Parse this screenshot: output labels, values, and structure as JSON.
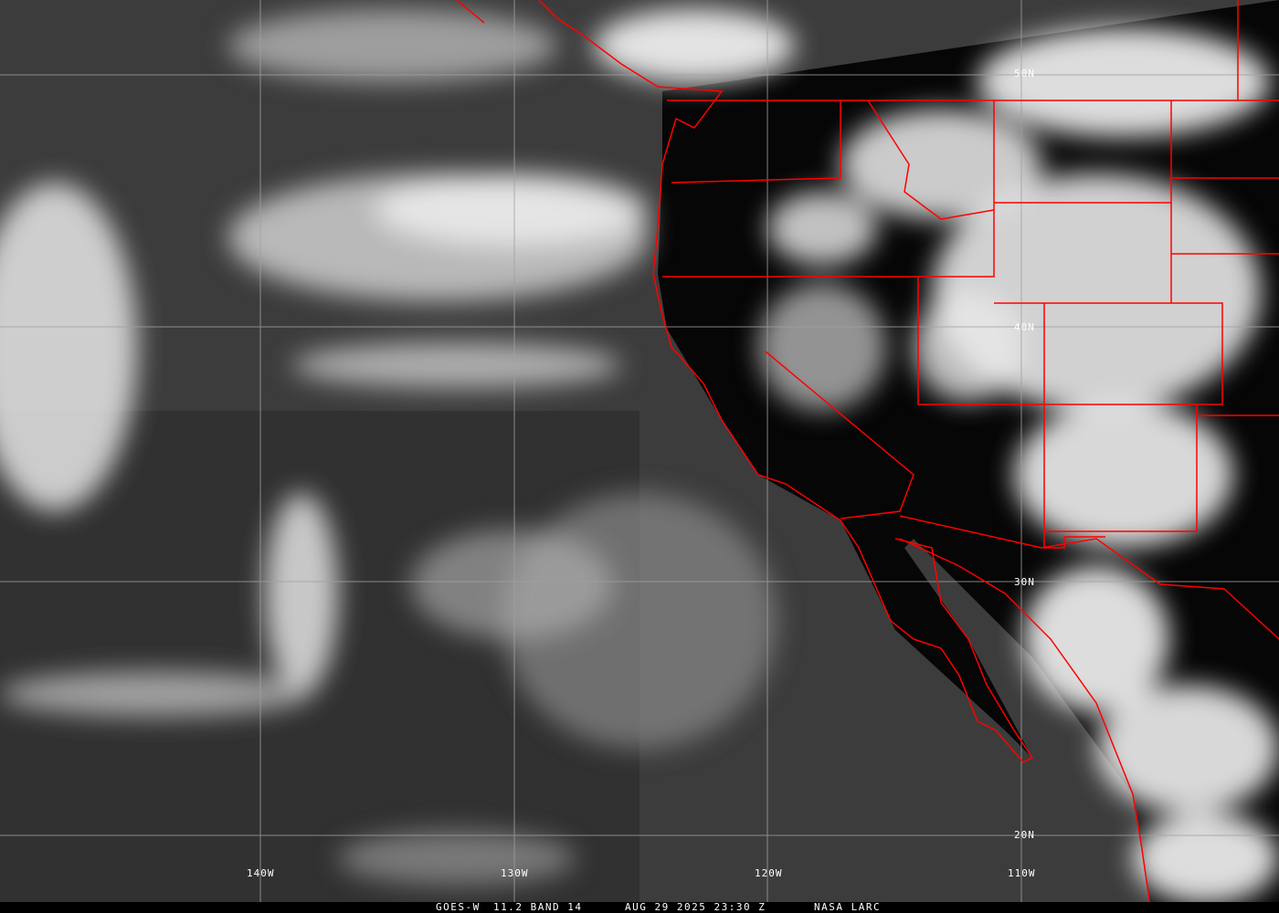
{
  "image": {
    "satellite": "GOES-W",
    "channel": "11.2 BAND 14",
    "datetime": "AUG 29 2025 23:30 Z",
    "credit": "NASA LARC",
    "colors": {
      "borders": "#ff0000",
      "grid": "#a0a0a0",
      "text": "#ffffff",
      "ocean": "#3a3a3a",
      "land": "#050505",
      "cloud": "#f2f2f2"
    }
  },
  "grid": {
    "latitudes": [
      "50N",
      "40N",
      "30N",
      "20N"
    ],
    "longitudes": [
      "140W",
      "130W",
      "120W",
      "110W"
    ]
  }
}
